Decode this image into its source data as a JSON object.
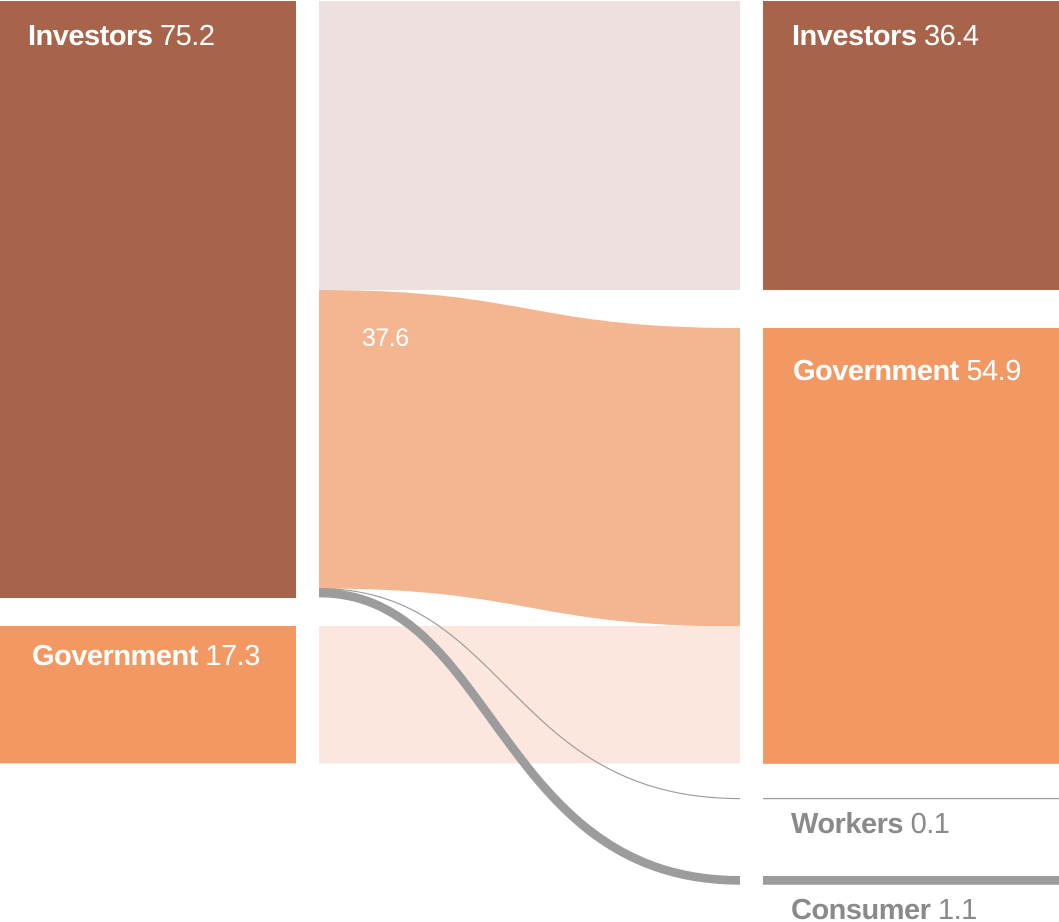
{
  "chart_data": {
    "type": "sankey",
    "colors": {
      "investors": "#a8634b",
      "government": "#f29863",
      "minor": "#9c9c9c",
      "flow_investors_to_investors": "#ede0de",
      "flow_investors_to_government": "#f4b690",
      "flow_government_to_government": "#fbe7dd"
    },
    "sources": [
      {
        "id": "src-investors",
        "name": "Investors",
        "value": 75.2,
        "color": "#a8634b"
      },
      {
        "id": "src-government",
        "name": "Government",
        "value": 17.3,
        "color": "#f29863"
      }
    ],
    "targets": [
      {
        "id": "tgt-investors",
        "name": "Investors",
        "value": 36.4,
        "color": "#a8634b"
      },
      {
        "id": "tgt-government",
        "name": "Government",
        "value": 54.9,
        "color": "#f29863"
      },
      {
        "id": "tgt-workers",
        "name": "Workers",
        "value": 0.1,
        "color": "#9c9c9c"
      },
      {
        "id": "tgt-consumer",
        "name": "Consumer",
        "value": 1.1,
        "color": "#9c9c9c"
      }
    ],
    "flows": [
      {
        "from": "Investors",
        "to": "Investors",
        "value": 36.4,
        "color": "#ede0de",
        "label": ""
      },
      {
        "from": "Investors",
        "to": "Government",
        "value": 37.6,
        "color": "#f4b690",
        "label": "37.6"
      },
      {
        "from": "Investors",
        "to": "Workers",
        "value": 0.1,
        "color": "#9c9c9c",
        "label": ""
      },
      {
        "from": "Investors",
        "to": "Consumer",
        "value": 1.1,
        "color": "#9c9c9c",
        "label": ""
      },
      {
        "from": "Government",
        "to": "Government",
        "value": 17.3,
        "color": "#fbe7dd",
        "label": ""
      }
    ]
  },
  "labels": {
    "src_investors_name": "Investors",
    "src_investors_value": "75.2",
    "src_government_name": "Government",
    "src_government_value": "17.3",
    "tgt_investors_name": "Investors",
    "tgt_investors_value": "36.4",
    "tgt_government_name": "Government",
    "tgt_government_value": "54.9",
    "tgt_workers_name": "Workers",
    "tgt_workers_value": "0.1",
    "tgt_consumer_name": "Consumer",
    "tgt_consumer_value": "1.1",
    "flow_label": "37.6"
  }
}
